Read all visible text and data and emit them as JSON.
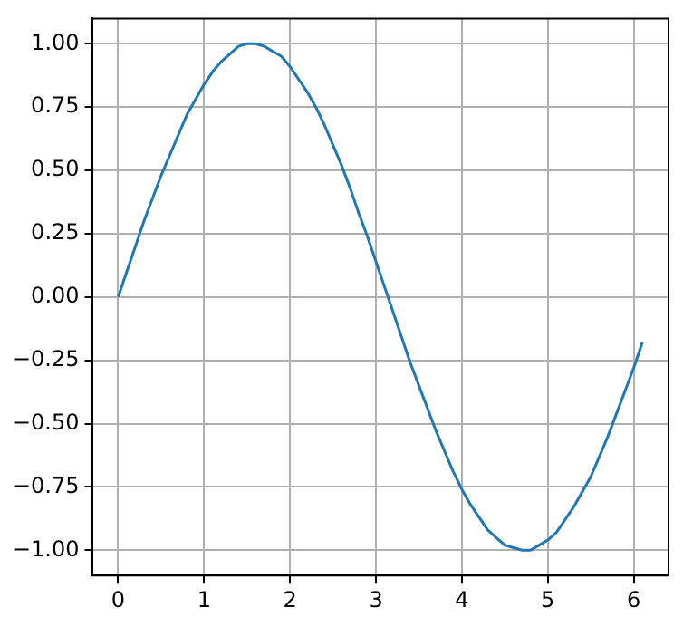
{
  "chart_data": {
    "type": "line",
    "x": [
      0,
      0.1,
      0.2,
      0.3,
      0.4,
      0.5,
      0.6,
      0.7,
      0.8,
      0.9,
      1.0,
      1.1,
      1.2,
      1.3,
      1.4,
      1.5,
      1.6,
      1.7,
      1.8,
      1.9,
      2.0,
      2.1,
      2.2,
      2.3,
      2.4,
      2.5,
      2.6,
      2.7,
      2.8,
      2.9,
      3.0,
      3.1,
      3.2,
      3.3,
      3.4,
      3.5,
      3.6,
      3.7,
      3.8,
      3.9,
      4.0,
      4.1,
      4.2,
      4.3,
      4.4,
      4.5,
      4.6,
      4.7,
      4.8,
      4.9,
      5.0,
      5.1,
      5.2,
      5.3,
      5.4,
      5.5,
      5.6,
      5.7,
      5.8,
      5.9,
      6.0,
      6.1
    ],
    "series": [
      {
        "color": "#1f77b4",
        "values": [
          0,
          0.1,
          0.2,
          0.3,
          0.39,
          0.48,
          0.56,
          0.64,
          0.72,
          0.78,
          0.84,
          0.89,
          0.93,
          0.96,
          0.99,
          1.0,
          1.0,
          0.99,
          0.97,
          0.95,
          0.91,
          0.86,
          0.81,
          0.75,
          0.68,
          0.6,
          0.52,
          0.43,
          0.33,
          0.24,
          0.14,
          0.04,
          -0.06,
          -0.16,
          -0.26,
          -0.35,
          -0.44,
          -0.53,
          -0.61,
          -0.69,
          -0.76,
          -0.82,
          -0.87,
          -0.92,
          -0.95,
          -0.98,
          -0.99,
          -1.0,
          -1.0,
          -0.98,
          -0.96,
          -0.93,
          -0.88,
          -0.83,
          -0.77,
          -0.71,
          -0.63,
          -0.55,
          -0.46,
          -0.37,
          -0.28,
          -0.18
        ]
      }
    ],
    "xlim": [
      -0.305,
      6.405
    ],
    "ylim": [
      -1.1,
      1.1
    ],
    "xticks": [
      0,
      1,
      2,
      3,
      4,
      5,
      6
    ],
    "yticks": [
      {
        "value": -1,
        "label": "−1.00"
      },
      {
        "value": -0.75,
        "label": "−0.75"
      },
      {
        "value": -0.5,
        "label": "−0.50"
      },
      {
        "value": -0.25,
        "label": "−0.25"
      },
      {
        "value": 0,
        "label": "0.00"
      },
      {
        "value": 0.25,
        "label": "0.25"
      },
      {
        "value": 0.5,
        "label": "0.50"
      },
      {
        "value": 0.75,
        "label": "0.75"
      },
      {
        "value": 1,
        "label": "1.00"
      }
    ],
    "grid": true,
    "marker": "none",
    "line_style": "solid",
    "legend": false
  }
}
